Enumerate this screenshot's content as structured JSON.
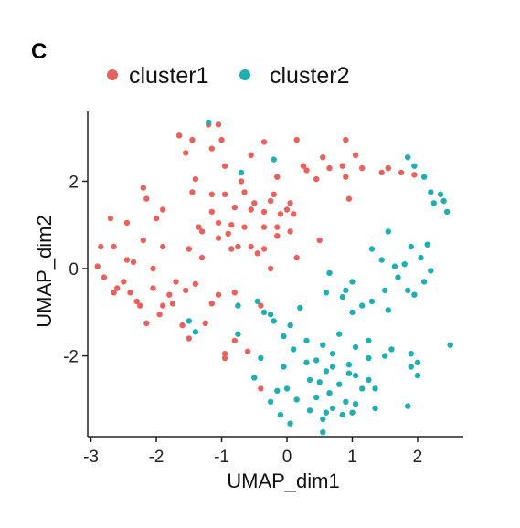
{
  "panel_label": "C",
  "chart_data": {
    "type": "scatter",
    "xlabel": "UMAP_dim1",
    "ylabel": "UMAP_dim2",
    "xlim": [
      -3.05,
      2.7
    ],
    "ylim": [
      -3.85,
      3.6
    ],
    "xticks": [
      -3,
      -2,
      -1,
      0,
      1,
      2
    ],
    "yticks": [
      -2,
      0,
      2
    ],
    "xtick_labels": [
      "-3",
      "-2",
      "-1",
      "0",
      "1",
      "2"
    ],
    "ytick_labels": [
      "-2",
      "0",
      "2"
    ],
    "grid": false,
    "legend_position": "top",
    "series": [
      {
        "name": "cluster1",
        "color": "#E8625D",
        "points": [
          [
            -1.2,
            3.3
          ],
          [
            -1.05,
            3.3
          ],
          [
            -1.65,
            3.05
          ],
          [
            -1.45,
            2.95
          ],
          [
            -1.0,
            2.95
          ],
          [
            -0.35,
            2.9
          ],
          [
            0.15,
            2.95
          ],
          [
            0.9,
            2.95
          ],
          [
            -1.55,
            2.65
          ],
          [
            -1.15,
            2.75
          ],
          [
            -0.55,
            2.6
          ],
          [
            0.55,
            2.55
          ],
          [
            1.05,
            2.6
          ],
          [
            -0.95,
            2.35
          ],
          [
            0.25,
            2.35
          ],
          [
            0.65,
            2.3
          ],
          [
            0.85,
            2.35
          ],
          [
            1.15,
            2.3
          ],
          [
            1.55,
            2.3
          ],
          [
            1.75,
            2.2
          ],
          [
            1.45,
            2.2
          ],
          [
            1.95,
            2.15
          ],
          [
            0.3,
            2.25
          ],
          [
            0.45,
            2.05
          ],
          [
            0.9,
            2.1
          ],
          [
            -0.15,
            2.1
          ],
          [
            -1.4,
            2.05
          ],
          [
            -0.7,
            2.0
          ],
          [
            -2.2,
            1.85
          ],
          [
            -1.45,
            1.75
          ],
          [
            -0.65,
            1.75
          ],
          [
            -0.95,
            1.7
          ],
          [
            -0.2,
            1.7
          ],
          [
            0.95,
            1.6
          ],
          [
            -2.15,
            1.6
          ],
          [
            -1.15,
            1.7
          ],
          [
            -0.25,
            1.55
          ],
          [
            -0.5,
            1.5
          ],
          [
            0.05,
            1.5
          ],
          [
            -0.8,
            1.4
          ],
          [
            -1.9,
            1.35
          ],
          [
            -0.55,
            1.35
          ],
          [
            0.0,
            1.35
          ],
          [
            0.1,
            1.25
          ],
          [
            -2.7,
            1.15
          ],
          [
            -1.15,
            1.3
          ],
          [
            -0.35,
            1.3
          ],
          [
            -0.1,
            1.25
          ],
          [
            -2.45,
            1.05
          ],
          [
            -2.0,
            1.15
          ],
          [
            -1.05,
            1.05
          ],
          [
            -0.85,
            1.0
          ],
          [
            -0.65,
            0.95
          ],
          [
            -0.35,
            0.95
          ],
          [
            -0.15,
            0.95
          ],
          [
            -1.35,
            0.95
          ],
          [
            -1.3,
            0.85
          ],
          [
            -0.9,
            0.8
          ],
          [
            0.05,
            0.85
          ],
          [
            -0.15,
            0.75
          ],
          [
            -2.2,
            0.65
          ],
          [
            -1.05,
            0.7
          ],
          [
            0.5,
            0.65
          ],
          [
            -2.85,
            0.5
          ],
          [
            -2.65,
            0.5
          ],
          [
            -1.9,
            0.5
          ],
          [
            -0.75,
            0.5
          ],
          [
            -0.55,
            0.5
          ],
          [
            -0.35,
            0.45
          ],
          [
            -1.5,
            0.45
          ],
          [
            -0.85,
            0.45
          ],
          [
            -0.45,
            0.35
          ],
          [
            0.15,
            0.25
          ],
          [
            -2.45,
            0.2
          ],
          [
            -2.35,
            0.15
          ],
          [
            -1.3,
            0.25
          ],
          [
            -2.9,
            0.05
          ],
          [
            -2.05,
            0.0
          ],
          [
            -0.25,
            0.0
          ],
          [
            -2.8,
            -0.2
          ],
          [
            -2.5,
            -0.3
          ],
          [
            -1.7,
            -0.3
          ],
          [
            -1.4,
            -0.35
          ],
          [
            -2.6,
            -0.45
          ],
          [
            -2.05,
            -0.45
          ],
          [
            -1.55,
            -0.5
          ],
          [
            -2.65,
            -0.55
          ],
          [
            -2.4,
            -0.55
          ],
          [
            -0.8,
            -0.55
          ],
          [
            -1.8,
            -0.6
          ],
          [
            -1.05,
            -0.6
          ],
          [
            -2.3,
            -0.75
          ],
          [
            -1.75,
            -0.8
          ],
          [
            -1.15,
            -0.8
          ],
          [
            -2.25,
            -0.85
          ],
          [
            -1.9,
            -0.85
          ],
          [
            -0.4,
            -0.85
          ],
          [
            -1.95,
            -1.05
          ],
          [
            -2.15,
            -1.25
          ],
          [
            -1.25,
            -1.25
          ],
          [
            -1.6,
            -1.3
          ],
          [
            -1.5,
            -1.6
          ],
          [
            -0.8,
            -1.65
          ],
          [
            -0.6,
            -1.9
          ],
          [
            -0.95,
            -1.95
          ],
          [
            -0.95,
            -2.05
          ],
          [
            -0.4,
            -2.75
          ]
        ]
      },
      {
        "name": "cluster2",
        "color": "#1FAFB3",
        "points": [
          [
            -1.2,
            3.35
          ],
          [
            1.85,
            2.55
          ],
          [
            1.95,
            2.35
          ],
          [
            -0.7,
            2.2
          ],
          [
            -0.2,
            2.5
          ],
          [
            2.1,
            2.1
          ],
          [
            2.2,
            1.75
          ],
          [
            2.35,
            1.7
          ],
          [
            2.25,
            1.5
          ],
          [
            2.45,
            1.3
          ],
          [
            2.4,
            1.55
          ],
          [
            1.55,
            0.85
          ],
          [
            2.15,
            0.55
          ],
          [
            1.9,
            0.5
          ],
          [
            1.3,
            0.45
          ],
          [
            2.05,
            0.25
          ],
          [
            1.45,
            0.2
          ],
          [
            1.65,
            0.05
          ],
          [
            1.8,
            0.1
          ],
          [
            2.2,
            -0.05
          ],
          [
            0.65,
            -0.1
          ],
          [
            1.7,
            -0.2
          ],
          [
            1.0,
            -0.3
          ],
          [
            2.1,
            -0.3
          ],
          [
            0.9,
            -0.5
          ],
          [
            1.5,
            -0.5
          ],
          [
            1.85,
            -0.5
          ],
          [
            0.6,
            -0.55
          ],
          [
            1.95,
            -0.6
          ],
          [
            0.85,
            -0.65
          ],
          [
            -0.45,
            -0.75
          ],
          [
            1.3,
            -0.75
          ],
          [
            1.15,
            -0.85
          ],
          [
            -0.75,
            -0.85
          ],
          [
            0.2,
            -0.9
          ],
          [
            1.55,
            -0.95
          ],
          [
            1.0,
            -1.0
          ],
          [
            -0.35,
            -1.0
          ],
          [
            -0.25,
            -1.05
          ],
          [
            -1.5,
            -1.2
          ],
          [
            -0.2,
            -1.2
          ],
          [
            0.05,
            -1.3
          ],
          [
            -1.4,
            -1.45
          ],
          [
            -0.75,
            -1.5
          ],
          [
            -0.05,
            -1.55
          ],
          [
            0.8,
            -1.5
          ],
          [
            0.3,
            -1.65
          ],
          [
            1.25,
            -1.65
          ],
          [
            0.55,
            -1.75
          ],
          [
            1.05,
            -1.8
          ],
          [
            0.1,
            -1.85
          ],
          [
            2.5,
            -1.75
          ],
          [
            1.6,
            -1.85
          ],
          [
            1.9,
            -1.95
          ],
          [
            0.7,
            -1.95
          ],
          [
            -0.4,
            -2.05
          ],
          [
            1.5,
            -2.0
          ],
          [
            1.25,
            -2.05
          ],
          [
            0.45,
            -2.1
          ],
          [
            0.7,
            -2.25
          ],
          [
            0.95,
            -2.2
          ],
          [
            2.0,
            -2.15
          ],
          [
            0.3,
            -2.15
          ],
          [
            -0.05,
            -2.25
          ],
          [
            0.6,
            -2.35
          ],
          [
            0.95,
            -2.4
          ],
          [
            1.05,
            -2.45
          ],
          [
            1.9,
            -2.25
          ],
          [
            2.0,
            -2.45
          ],
          [
            -0.5,
            -2.5
          ],
          [
            0.35,
            -2.55
          ],
          [
            1.25,
            -2.55
          ],
          [
            0.5,
            -2.6
          ],
          [
            0.8,
            -2.65
          ],
          [
            0.0,
            -2.75
          ],
          [
            1.15,
            -2.75
          ],
          [
            1.35,
            -2.75
          ],
          [
            -0.15,
            -2.8
          ],
          [
            0.65,
            -2.85
          ],
          [
            0.45,
            -2.95
          ],
          [
            0.15,
            -3.0
          ],
          [
            -0.25,
            -3.05
          ],
          [
            0.9,
            -3.05
          ],
          [
            1.05,
            -3.1
          ],
          [
            1.85,
            -3.15
          ],
          [
            0.7,
            -3.2
          ],
          [
            1.35,
            -3.2
          ],
          [
            0.35,
            -3.25
          ],
          [
            1.0,
            -3.3
          ],
          [
            -0.1,
            -3.35
          ],
          [
            0.6,
            -3.3
          ],
          [
            0.85,
            -3.35
          ],
          [
            0.55,
            -3.45
          ],
          [
            0.05,
            -3.55
          ],
          [
            0.55,
            -3.75
          ]
        ]
      }
    ]
  }
}
